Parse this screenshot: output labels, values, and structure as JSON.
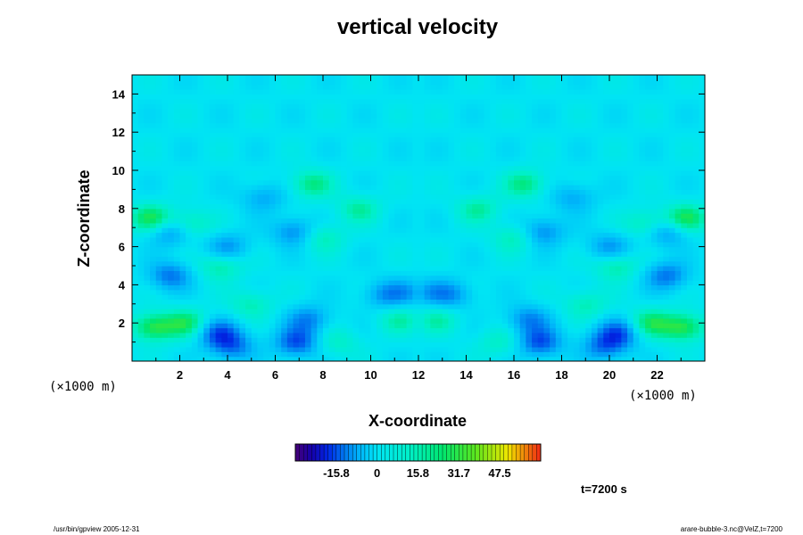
{
  "chart_data": {
    "type": "heatmap",
    "title": "vertical velocity",
    "xlabel": "X-coordinate",
    "ylabel": "Z-coordinate",
    "x_unit": "(×1000 m)",
    "y_unit": "(×1000 m)",
    "xlim": [
      0,
      24
    ],
    "ylim": [
      0,
      15
    ],
    "x_ticks": [
      2,
      4,
      6,
      8,
      10,
      12,
      14,
      16,
      18,
      20,
      22
    ],
    "y_ticks": [
      2,
      4,
      6,
      8,
      10,
      12,
      14
    ],
    "x_tick_labels": [
      "2",
      "4",
      "6",
      "8",
      "10",
      "12",
      "14",
      "16",
      "18",
      "20",
      "22"
    ],
    "y_tick_labels": [
      "2",
      "4",
      "6",
      "8",
      "10",
      "12",
      "14"
    ],
    "background_value": 0,
    "features": [
      {
        "x": 0.9,
        "z": 1.8,
        "w": 0.5
      },
      {
        "x": 0.8,
        "z": 7.5,
        "w": 0.45
      },
      {
        "x": 2.4,
        "z": 7.2,
        "w": 0.3
      },
      {
        "x": 3.7,
        "z": 5.0,
        "w": 0.3
      },
      {
        "x": 2.3,
        "z": 2.0,
        "w": 0.4
      },
      {
        "x": 1.6,
        "z": 4.5,
        "w": -0.4
      },
      {
        "x": 1.6,
        "z": 6.8,
        "w": -0.35
      },
      {
        "x": 3.6,
        "z": 1.5,
        "w": -0.45
      },
      {
        "x": 4.2,
        "z": 0.8,
        "w": -0.4
      },
      {
        "x": 4.0,
        "z": 6.0,
        "w": -0.3
      },
      {
        "x": 6.9,
        "z": 1.0,
        "w": -0.5
      },
      {
        "x": 7.4,
        "z": 2.2,
        "w": -0.35
      },
      {
        "x": 6.8,
        "z": 6.8,
        "w": -0.35
      },
      {
        "x": 7.5,
        "z": 9.3,
        "w": 0.35
      },
      {
        "x": 5.0,
        "z": 3.0,
        "w": 0.25
      },
      {
        "x": 8.0,
        "z": 6.5,
        "w": 0.25
      },
      {
        "x": 5.5,
        "z": 8.6,
        "w": -0.25
      },
      {
        "x": 9.5,
        "z": 8.0,
        "w": 0.28
      },
      {
        "x": 10.6,
        "z": 3.5,
        "w": -0.3
      },
      {
        "x": 11.2,
        "z": 2.2,
        "w": 0.25
      },
      {
        "x": 11.6,
        "z": 3.6,
        "w": -0.2
      },
      {
        "x": 8.6,
        "z": 1.0,
        "w": 0.2
      }
    ],
    "colorbar": {
      "range": [
        -31.7,
        63.4
      ],
      "ticks": [
        -15.8,
        0,
        15.8,
        31.7,
        47.5
      ],
      "tick_labels": [
        "-15.8",
        "0",
        "15.8",
        "31.7",
        "47.5"
      ]
    }
  },
  "time_label": "t=7200 s",
  "footer_left": "/usr/bin/gpview 2005-12-31",
  "footer_right": "arare-bubble-3.nc@VelZ,t=7200"
}
